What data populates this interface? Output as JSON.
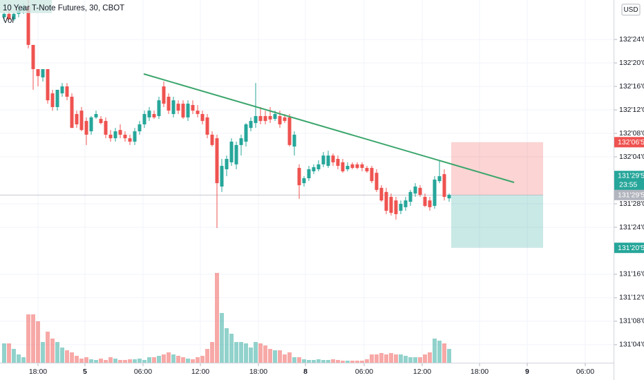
{
  "chart_data": {
    "type": "candlestick",
    "title": "10 Year T-Note Futures, 30, CBOT",
    "volume_label": "Vol",
    "currency": "USD",
    "up_color": "#26a69a",
    "down_color": "#ef5350",
    "grid": true,
    "xlim": [
      -0.857,
      126
    ],
    "xticks": [
      {
        "value": 7,
        "label": "18:00"
      },
      {
        "value": 16.71,
        "label": "5"
      },
      {
        "value": 28.71,
        "label": "06:00"
      },
      {
        "value": 40.57,
        "label": "12:00"
      },
      {
        "value": 52.57,
        "label": "18:00"
      },
      {
        "value": 62.29,
        "label": "8"
      },
      {
        "value": 74.43,
        "label": "06:00"
      },
      {
        "value": 86.43,
        "label": "12:00"
      },
      {
        "value": 98.29,
        "label": "18:00"
      },
      {
        "value": 108.14,
        "label": "9"
      },
      {
        "value": 120.14,
        "label": "06:00"
      }
    ],
    "ylim": [
      131.029,
      132.96
    ],
    "yticks": [
      {
        "value": 132.75,
        "label": "132'24'0"
      },
      {
        "value": 132.625,
        "label": "132'20'0"
      },
      {
        "value": 132.5,
        "label": "132'16'0"
      },
      {
        "value": 132.375,
        "label": "132'12'0"
      },
      {
        "value": 132.25,
        "label": "132'08'0"
      },
      {
        "value": 132.125,
        "label": "132'04'0"
      },
      {
        "value": 131.875,
        "label": "131'28'0"
      },
      {
        "value": 131.75,
        "label": "131'24'0"
      },
      {
        "value": 131.5,
        "label": "131'16'0"
      },
      {
        "value": 131.375,
        "label": "131'12'0"
      },
      {
        "value": 131.25,
        "label": "131'08'0"
      },
      {
        "value": 131.125,
        "label": "131'04'0"
      }
    ],
    "open": [
      132.868,
      132.886,
      132.857,
      132.886,
      132.904,
      132.923,
      132.721,
      132.592,
      132.548,
      132.592,
      132.463,
      132.39,
      132.463,
      132.5,
      132.445,
      132.353,
      132.371,
      132.316,
      132.261,
      132.335,
      132.327,
      132.316,
      132.243,
      132.224,
      132.268,
      132.243,
      132.224,
      132.206,
      132.261,
      132.298,
      132.335,
      132.353,
      132.342,
      132.5,
      132.445,
      132.353,
      132.408,
      132.408,
      132.335,
      132.401,
      132.371,
      132.353,
      132.335,
      132.243,
      132.224,
      131.967,
      132.059,
      132.096,
      132.085,
      132.188,
      132.206,
      132.279,
      132.305,
      132.342,
      132.342,
      132.342,
      132.327,
      132.342,
      132.335,
      132.335,
      132.18,
      132.066,
      131.985,
      132.011,
      132.048,
      132.059,
      132.085,
      132.077,
      132.132,
      132.114,
      132.096,
      132.059,
      132.085,
      132.085,
      132.085,
      132.066,
      132.066,
      132.04,
      131.96,
      131.938,
      131.912,
      131.893,
      131.838,
      131.857,
      131.886,
      131.93,
      131.96,
      131.912,
      131.893,
      131.864,
      131.996,
      132.033,
      131.904
    ],
    "high": [
      132.893,
      132.904,
      132.893,
      132.923,
      132.941,
      132.96,
      132.721,
      132.592,
      132.592,
      132.592,
      132.482,
      132.482,
      132.518,
      132.518,
      132.463,
      132.371,
      132.39,
      132.335,
      132.342,
      132.371,
      132.342,
      132.335,
      132.268,
      132.279,
      132.298,
      132.261,
      132.243,
      132.279,
      132.316,
      132.371,
      132.39,
      132.371,
      132.445,
      132.526,
      132.463,
      132.445,
      132.426,
      132.426,
      132.426,
      132.426,
      132.401,
      132.371,
      132.353,
      132.261,
      132.243,
      132.114,
      132.132,
      132.224,
      132.206,
      132.243,
      132.305,
      132.335,
      132.518,
      132.39,
      132.371,
      132.39,
      132.371,
      132.371,
      132.353,
      132.353,
      132.261,
      132.085,
      132.022,
      132.077,
      132.085,
      132.107,
      132.151,
      132.158,
      132.143,
      132.132,
      132.114,
      132.096,
      132.096,
      132.096,
      132.096,
      132.077,
      132.077,
      132.059,
      131.974,
      131.96,
      131.93,
      131.912,
      131.893,
      131.912,
      131.949,
      131.985,
      131.974,
      131.93,
      131.912,
      132.022,
      132.107,
      132.059,
      131.93
    ],
    "low": [
      132.849,
      132.857,
      132.849,
      132.868,
      132.886,
      132.702,
      132.482,
      132.5,
      132.526,
      132.408,
      132.371,
      132.371,
      132.445,
      132.426,
      132.279,
      132.279,
      132.261,
      132.188,
      132.243,
      132.327,
      132.298,
      132.224,
      132.206,
      132.206,
      132.224,
      132.206,
      132.188,
      132.188,
      132.243,
      132.279,
      132.316,
      132.327,
      132.327,
      132.39,
      132.353,
      132.335,
      132.353,
      132.327,
      132.316,
      132.353,
      132.335,
      132.298,
      132.224,
      132.18,
      131.746,
      131.938,
      132.022,
      132.077,
      132.059,
      132.132,
      132.18,
      132.261,
      132.279,
      132.298,
      132.298,
      132.305,
      132.316,
      132.279,
      132.305,
      132.18,
      132.132,
      131.901,
      131.967,
      131.996,
      132.033,
      132.048,
      132.07,
      132.066,
      132.077,
      132.059,
      132.04,
      132.048,
      132.059,
      132.059,
      132.048,
      132.04,
      131.985,
      131.938,
      131.886,
      131.82,
      131.813,
      131.791,
      131.82,
      131.838,
      131.864,
      131.912,
      131.912,
      131.857,
      131.838,
      131.849,
      131.985,
      131.893,
      131.886
    ],
    "close": [
      132.886,
      132.857,
      132.886,
      132.904,
      132.923,
      132.721,
      132.592,
      132.555,
      132.592,
      132.426,
      132.39,
      132.482,
      132.5,
      132.445,
      132.279,
      132.298,
      132.268,
      132.243,
      132.335,
      132.353,
      132.305,
      132.243,
      132.224,
      132.261,
      132.243,
      132.224,
      132.206,
      132.261,
      132.298,
      132.353,
      132.371,
      132.335,
      132.426,
      132.408,
      132.371,
      132.426,
      132.371,
      132.335,
      132.408,
      132.371,
      132.353,
      132.316,
      132.243,
      132.188,
      131.985,
      132.077,
      132.114,
      132.206,
      132.188,
      132.224,
      132.298,
      132.316,
      132.342,
      132.316,
      132.316,
      132.324,
      132.353,
      132.298,
      132.316,
      132.188,
      132.243,
      131.974,
      132.011,
      132.059,
      132.07,
      132.085,
      132.132,
      132.132,
      132.096,
      132.077,
      132.048,
      132.077,
      132.066,
      132.066,
      132.066,
      132.048,
      131.996,
      131.949,
      131.893,
      131.838,
      131.827,
      131.82,
      131.875,
      131.893,
      131.938,
      131.967,
      131.923,
      131.864,
      131.857,
      132.004,
      132.022,
      131.912,
      131.923
    ],
    "volume": [
      28,
      28,
      20,
      12,
      8,
      70,
      70,
      60,
      30,
      45,
      35,
      30,
      22,
      18,
      15,
      10,
      6,
      8,
      5,
      4,
      6,
      4,
      8,
      6,
      4,
      4,
      5,
      5,
      6,
      4,
      8,
      8,
      10,
      12,
      15,
      12,
      10,
      8,
      6,
      5,
      8,
      10,
      20,
      30,
      130,
      72,
      50,
      42,
      30,
      30,
      28,
      22,
      30,
      28,
      25,
      20,
      18,
      18,
      12,
      15,
      8,
      8,
      5,
      4,
      4,
      5,
      4,
      4,
      5,
      4,
      3,
      3,
      3,
      3,
      3,
      5,
      12,
      12,
      14,
      12,
      14,
      12,
      12,
      10,
      8,
      8,
      8,
      12,
      15,
      35,
      32,
      28,
      20
    ],
    "position": {
      "stop": {
        "value": 132.203125,
        "label": "132'06'5"
      },
      "entry": {
        "value": 131.921875,
        "label": "131'29'5"
      },
      "target": {
        "value": 131.640625,
        "label": "131'20'5"
      }
    },
    "last_price": {
      "value": 131.921875,
      "label": "131'29'5",
      "countdown": "23:55"
    }
  }
}
